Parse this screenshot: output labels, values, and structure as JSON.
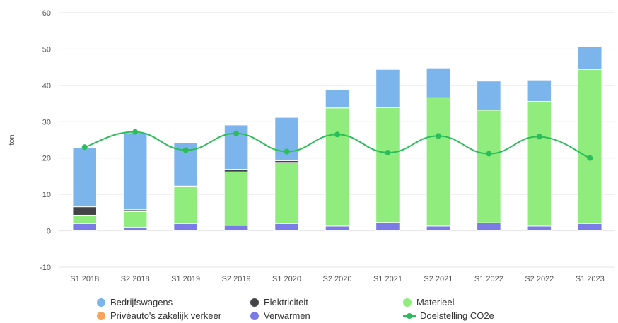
{
  "chart_data": {
    "type": "bar",
    "stacked": true,
    "title": "",
    "xlabel": "",
    "ylabel": "ton",
    "ylim": [
      -10,
      60
    ],
    "yticks": [
      -10,
      0,
      10,
      20,
      30,
      40,
      50,
      60
    ],
    "grid": true,
    "categories": [
      "S1 2018",
      "S2 2018",
      "S1 2019",
      "S2 2019",
      "S1 2020",
      "S2 2020",
      "S1 2021",
      "S2 2021",
      "S1 2022",
      "S2 2022",
      "S1 2023"
    ],
    "series": [
      {
        "name": "Verwarmen",
        "color": "#7b7be8",
        "values": [
          2.0,
          1.0,
          2.0,
          1.5,
          2.0,
          1.3,
          2.3,
          1.3,
          2.2,
          1.3,
          2.0
        ]
      },
      {
        "name": "Priveauto's zakelijk verkeer",
        "color": "#f7a35c",
        "values": [
          0,
          0,
          0,
          0,
          0,
          0,
          0,
          0,
          0,
          0,
          0
        ]
      },
      {
        "name": "Materieel",
        "color": "#90ed7d",
        "values": [
          2.3,
          4.3,
          10.3,
          14.7,
          16.8,
          32.5,
          31.6,
          35.3,
          31.0,
          34.3,
          42.4
        ]
      },
      {
        "name": "Elektriciteit",
        "color": "#434348",
        "values": [
          2.3,
          0.5,
          0,
          0.7,
          0.5,
          0,
          0,
          0,
          0,
          0,
          0
        ]
      },
      {
        "name": "Bedrijfswagens",
        "color": "#7cb5ec",
        "values": [
          16.2,
          21.2,
          12.0,
          12.2,
          11.9,
          5.1,
          10.5,
          8.2,
          8.0,
          5.9,
          6.3
        ]
      }
    ],
    "line": {
      "name": "Doelstelling CO2e",
      "color": "#2bbd5a",
      "values": [
        23.0,
        27.2,
        22.2,
        26.8,
        21.8,
        26.5,
        21.5,
        26.1,
        21.2,
        25.9,
        20.0
      ]
    }
  },
  "legend": {
    "items": [
      {
        "label": "Bedrijfswagens",
        "color": "#7cb5ec",
        "kind": "dot"
      },
      {
        "label": "Elektriciteit",
        "color": "#434348",
        "kind": "dot"
      },
      {
        "label": "Materieel",
        "color": "#90ed7d",
        "kind": "dot"
      },
      {
        "label": "Privéauto's zakelijk verkeer",
        "color": "#f7a35c",
        "kind": "dot"
      },
      {
        "label": "Verwarmen",
        "color": "#7b7be8",
        "kind": "dot"
      },
      {
        "label": "Doelstelling CO2e",
        "color": "#2bbd5a",
        "kind": "line"
      }
    ]
  }
}
